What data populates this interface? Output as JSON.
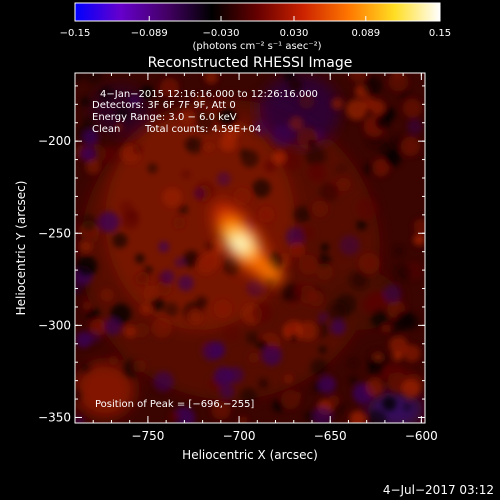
{
  "chart_data": {
    "type": "heatmap",
    "title": "Reconstructed RHESSI Image",
    "xlabel": "Heliocentric X (arcsec)",
    "ylabel": "Heliocentric Y (arcsec)",
    "xlim": [
      -790,
      -598
    ],
    "ylim": [
      -353,
      -163
    ],
    "xticks": [
      {
        "value": -750,
        "label": "−750"
      },
      {
        "value": -700,
        "label": "−700"
      },
      {
        "value": -650,
        "label": "−650"
      },
      {
        "value": -600,
        "label": "−600"
      }
    ],
    "yticks": [
      {
        "value": -200,
        "label": "−200"
      },
      {
        "value": -250,
        "label": "−250"
      },
      {
        "value": -300,
        "label": "−300"
      },
      {
        "value": -350,
        "label": "−350"
      }
    ],
    "colorbar": {
      "range": [
        -0.15,
        0.15
      ],
      "ticks": [
        {
          "value": -0.15,
          "label": "−0.15"
        },
        {
          "value": -0.089,
          "label": "−0.089"
        },
        {
          "value": -0.03,
          "label": "−0.030"
        },
        {
          "value": 0.03,
          "label": "0.030"
        },
        {
          "value": 0.089,
          "label": "0.089"
        },
        {
          "value": 0.15,
          "label": "0.15"
        }
      ],
      "unit_label": "(photons cm⁻² s⁻¹ asec⁻²)",
      "colors": [
        "#0000ff",
        "#6600cc",
        "#440066",
        "#000000",
        "#660000",
        "#cc2200",
        "#ff7700",
        "#ffdd22",
        "#ffffff"
      ]
    },
    "annotations": {
      "time_range": "4−Jan−2015 12:16:16.000 to 12:26:16.000",
      "detectors": "Detectors: 3F 6F 7F 9F, Att 0",
      "energy_range": "Energy Range: 3.0 − 6.0 keV",
      "method": "Clean",
      "total_counts": "Total counts: 4.59E+04",
      "peak_position": "Position of Peak = [−696,−255]"
    },
    "peak": {
      "x": -696,
      "y": -255
    },
    "footer_date": "4−Jul−2017 03:12"
  }
}
